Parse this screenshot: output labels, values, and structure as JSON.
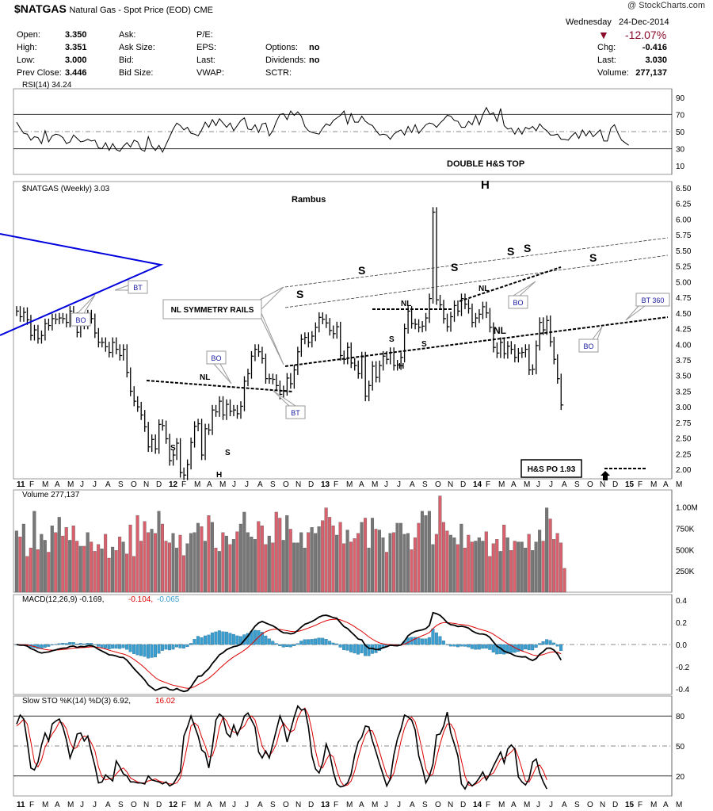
{
  "header": {
    "symbol": "$NATGAS",
    "description": "Natural Gas - Spot Price (EOD)",
    "exchange": "CME",
    "credit": "@ StockCharts.com",
    "day": "Wednesday",
    "date": "24-Dec-2014",
    "pct_change": "-12.07%",
    "quote": [
      {
        "label": "Open:",
        "value": "3.350"
      },
      {
        "label": "High:",
        "value": "3.351"
      },
      {
        "label": "Low:",
        "value": "3.000"
      },
      {
        "label": "Prev Close:",
        "value": "3.446"
      }
    ],
    "col2": [
      "Ask:",
      "Ask Size:",
      "Bid:",
      "Bid Size:"
    ],
    "col3": [
      "P/E:",
      "EPS:",
      "Last:",
      "VWAP:"
    ],
    "col4": [
      {
        "label": "Options:",
        "value": "no"
      },
      {
        "label": "Dividends:",
        "value": "no"
      },
      {
        "label": "SCTR:",
        "value": ""
      }
    ],
    "right": [
      {
        "label": "Chg:",
        "value": "-0.416"
      },
      {
        "label": "Last:",
        "value": "3.030"
      },
      {
        "label": "Volume:",
        "value": "277,137"
      }
    ],
    "down_color": "#8b0a2a"
  },
  "panels": {
    "rsi_label": "RSI(14) 34.24",
    "price_label": "$NATGAS (Weekly) 3.03",
    "volume_label": "Volume 277,137",
    "macd_label": "MACD(12,26,9) -0.169,",
    "macd_sig": "-0.104,",
    "macd_hist": "-0.065",
    "sto_label": "Slow STO %K(14) %D(3) 6.92,",
    "sto_d": "16.02"
  },
  "annotations": {
    "double_top": "DOUBLE H&S TOP",
    "rambus": "Rambus",
    "nl_rails": "NL SYMMETRY RAILS",
    "hs_po": "H&S PO 1.93",
    "bt360": "BT 360",
    "H": "H",
    "S": "S",
    "NL": "NL",
    "BO": "BO",
    "BT": "BT"
  },
  "time_axis": [
    "11",
    "F",
    "M",
    "A",
    "M",
    "J",
    "J",
    "A",
    "S",
    "O",
    "N",
    "D",
    "12",
    "F",
    "M",
    "A",
    "M",
    "J",
    "J",
    "A",
    "S",
    "O",
    "N",
    "D",
    "13",
    "F",
    "M",
    "A",
    "M",
    "J",
    "J",
    "A",
    "S",
    "O",
    "N",
    "D",
    "14",
    "F",
    "M",
    "A",
    "M",
    "J",
    "J",
    "A",
    "S",
    "O",
    "N",
    "D",
    "15",
    "F",
    "M",
    "A",
    "M"
  ],
  "colors": {
    "up": "#777777",
    "down": "#d9606d",
    "macd_hist": "#3a9fd0",
    "signal": "#dd0000",
    "trendline": "#0000dd"
  },
  "chart_data": [
    {
      "type": "line",
      "title": "RSI(14) 34.24",
      "ylim": [
        0,
        100
      ],
      "y_ticks": [
        10,
        30,
        50,
        70,
        90
      ],
      "values": [
        61,
        54,
        48,
        47,
        40,
        44,
        43,
        36,
        51,
        38,
        45,
        47,
        46,
        43,
        36,
        38,
        46,
        42,
        38,
        39,
        41,
        39,
        40,
        31,
        30,
        37,
        28,
        36,
        29,
        27,
        33,
        37,
        32,
        40,
        38,
        29,
        27,
        44,
        33,
        28,
        34,
        26,
        35,
        44,
        53,
        60,
        57,
        52,
        55,
        48,
        47,
        45,
        52,
        61,
        55,
        64,
        57,
        65,
        60,
        55,
        60,
        51,
        57,
        63,
        66,
        53,
        52,
        58,
        49,
        59,
        60,
        45,
        51,
        62,
        70,
        71,
        64,
        74,
        69,
        73,
        68,
        56,
        51,
        49,
        48,
        47,
        54,
        59,
        57,
        63,
        66,
        69,
        74,
        59,
        71,
        61,
        61,
        68,
        62,
        59,
        57,
        51,
        46,
        47,
        46,
        41,
        47,
        50,
        52,
        46,
        56,
        49,
        58,
        48,
        53,
        58,
        60,
        59,
        55,
        60,
        64,
        69,
        68,
        63,
        62,
        55,
        55,
        62,
        58,
        69,
        58,
        70,
        78,
        70,
        72,
        62,
        77,
        57,
        53,
        54,
        47,
        54,
        47,
        55,
        53,
        56,
        51,
        59,
        54,
        51,
        46,
        46,
        47,
        41,
        41,
        40,
        45,
        49,
        42,
        52,
        45,
        51,
        44,
        48,
        52,
        39,
        39,
        54,
        58,
        48,
        40,
        37,
        34
      ]
    },
    {
      "type": "bar",
      "title": "$NATGAS (Weekly) 3.03",
      "y_ticks": [
        2.0,
        2.25,
        2.5,
        2.75,
        3.0,
        3.25,
        3.5,
        3.75,
        4.0,
        4.25,
        4.5,
        4.75,
        5.0,
        5.25,
        5.5,
        5.75,
        6.0,
        6.25,
        6.5
      ],
      "ylim": [
        1.85,
        6.6
      ],
      "values": [
        4.53,
        4.44,
        4.51,
        4.39,
        4.14,
        4.23,
        4.09,
        4.14,
        4.33,
        4.3,
        4.41,
        4.4,
        4.42,
        4.41,
        4.35,
        4.53,
        4.43,
        4.19,
        4.47,
        4.32,
        4.47,
        4.41,
        4.18,
        4.03,
        4.03,
        3.96,
        3.87,
        4.03,
        3.92,
        3.82,
        3.92,
        3.55,
        3.25,
        3.09,
        3.0,
        2.87,
        2.68,
        2.36,
        2.48,
        2.33,
        2.72,
        2.7,
        2.49,
        2.14,
        2.23,
        2.42,
        1.95,
        1.91,
        2.08,
        2.43,
        2.69,
        2.73,
        2.23,
        2.65,
        2.63,
        2.95,
        2.92,
        3.09,
        2.87,
        3.04,
        2.93,
        2.95,
        2.89,
        3.01,
        3.41,
        3.53,
        3.81,
        3.92,
        3.88,
        3.77,
        3.45,
        3.45,
        3.44,
        3.34,
        3.2,
        3.26,
        3.46,
        3.37,
        3.59,
        3.88,
        4.08,
        4.11,
        4.03,
        4.13,
        4.27,
        4.43,
        4.4,
        4.34,
        4.22,
        4.17,
        4.28,
        3.82,
        3.76,
        3.95,
        3.7,
        3.66,
        3.53,
        3.8,
        3.17,
        3.34,
        3.65,
        3.47,
        3.66,
        3.81,
        3.76,
        3.87,
        3.66,
        3.67,
        3.79,
        4.25,
        4.53,
        4.33,
        4.32,
        4.27,
        4.29,
        4.42,
        4.73,
        6.11,
        4.71,
        4.63,
        4.41,
        4.28,
        4.44,
        4.62,
        4.53,
        4.73,
        4.64,
        4.57,
        4.35,
        4.42,
        4.48,
        4.6,
        4.5,
        4.27,
        3.95,
        3.86,
        4.03,
        3.85,
        3.97,
        3.92,
        3.79,
        3.86,
        3.87,
        3.92,
        3.59,
        3.6,
        3.98,
        4.35,
        4.23,
        4.38,
        4.04,
        3.76,
        3.45,
        3.03
      ],
      "annotation_lines": {
        "po_target": 1.93
      }
    },
    {
      "type": "bar",
      "title": "Volume 277,137",
      "y_ticks": [
        "250K",
        "500K",
        "750K",
        "1.00M"
      ],
      "ylim": [
        0,
        1200
      ],
      "values": [
        720,
        650,
        800,
        420,
        520,
        950,
        500,
        680,
        610,
        470,
        780,
        700,
        880,
        660,
        760,
        610,
        780,
        600,
        540,
        540,
        700,
        590,
        480,
        560,
        510,
        680,
        400,
        530,
        490,
        650,
        590,
        450,
        790,
        420,
        900,
        600,
        830,
        700,
        740,
        690,
        950,
        800,
        600,
        580,
        690,
        520,
        670,
        430,
        570,
        690,
        700,
        810,
        770,
        600,
        900,
        820,
        520,
        480,
        700,
        660,
        560,
        620,
        710,
        800,
        940,
        700,
        650,
        620,
        830,
        780,
        560,
        660,
        580,
        940,
        870,
        610,
        900,
        740,
        580,
        580,
        700,
        520,
        700,
        760,
        690,
        770,
        840,
        990,
        880,
        780,
        670,
        820,
        570,
        730,
        590,
        630,
        690,
        820,
        870,
        520,
        870,
        740,
        730,
        640,
        470,
        690,
        700,
        810,
        810,
        680,
        690,
        500,
        640,
        810,
        950,
        900,
        950,
        560,
        680,
        1130,
        820,
        720,
        670,
        640,
        560,
        800,
        520,
        670,
        590,
        600,
        640,
        600,
        710,
        420,
        570,
        620,
        480,
        790,
        640,
        490,
        600,
        590,
        590,
        520,
        680,
        490,
        590,
        730,
        600,
        990,
        860,
        620,
        690,
        580,
        280
      ]
    },
    {
      "type": "line",
      "title": "MACD(12,26,9) -0.169, -0.104, -0.065",
      "ylim": [
        -0.45,
        0.45
      ],
      "y_ticks": [
        -0.4,
        -0.2,
        0.0,
        0.2,
        0.4
      ]
    },
    {
      "type": "line",
      "title": "Slow STO %K(14) %D(3) 6.92, 16.02",
      "ylim": [
        0,
        100
      ],
      "y_ticks": [
        20,
        50,
        80
      ],
      "series": [
        {
          "name": "%K",
          "values": [
            72,
            81,
            77,
            54,
            28,
            26,
            34,
            51,
            63,
            55,
            72,
            75,
            77,
            69,
            56,
            38,
            48,
            62,
            63,
            55,
            60,
            44,
            30,
            13,
            14,
            21,
            18,
            15,
            35,
            29,
            22,
            20,
            14,
            14,
            13,
            13,
            12,
            20,
            16,
            15,
            14,
            12,
            14,
            10,
            12,
            18,
            24,
            60,
            69,
            80,
            70,
            60,
            46,
            43,
            28,
            49,
            76,
            82,
            79,
            63,
            59,
            71,
            61,
            69,
            80,
            83,
            76,
            69,
            44,
            38,
            45,
            38,
            52,
            66,
            80,
            71,
            54,
            66,
            79,
            90,
            86,
            87,
            69,
            40,
            27,
            23,
            33,
            52,
            42,
            24,
            12,
            9,
            10,
            13,
            22,
            41,
            54,
            59,
            70,
            69,
            55,
            44,
            32,
            21,
            10,
            17,
            41,
            57,
            67,
            81,
            79,
            76,
            66,
            40,
            28,
            13,
            20,
            32,
            61,
            62,
            70,
            84,
            63,
            52,
            40,
            12,
            7,
            14,
            10,
            13,
            18,
            24,
            16,
            22,
            30,
            37,
            44,
            33,
            47,
            51,
            47,
            19,
            14,
            11,
            17,
            34,
            37,
            23,
            14,
            7
          ]
        },
        {
          "name": "%D",
          "values": [
            70,
            73,
            77,
            72,
            54,
            34,
            29,
            36,
            49,
            56,
            62,
            67,
            74,
            73,
            67,
            54,
            47,
            49,
            57,
            60,
            59,
            53,
            45,
            29,
            19,
            16,
            17,
            18,
            22,
            26,
            28,
            24,
            18,
            16,
            14,
            13,
            13,
            15,
            16,
            17,
            15,
            14,
            13,
            12,
            12,
            13,
            18,
            34,
            51,
            70,
            73,
            70,
            59,
            50,
            39,
            40,
            51,
            69,
            79,
            75,
            67,
            64,
            63,
            67,
            70,
            77,
            80,
            76,
            63,
            50,
            43,
            40,
            45,
            52,
            66,
            73,
            68,
            64,
            66,
            78,
            85,
            88,
            81,
            65,
            45,
            30,
            28,
            36,
            42,
            39,
            26,
            15,
            10,
            11,
            15,
            25,
            39,
            51,
            61,
            66,
            65,
            56,
            44,
            32,
            21,
            16,
            23,
            38,
            55,
            68,
            76,
            79,
            74,
            61,
            45,
            27,
            20,
            22,
            38,
            52,
            64,
            72,
            72,
            66,
            52,
            35,
            20,
            11,
            10,
            12,
            14,
            18,
            19,
            21,
            23,
            30,
            37,
            38,
            41,
            44,
            48,
            39,
            27,
            15,
            14,
            21,
            29,
            31,
            25,
            16
          ]
        }
      ]
    }
  ]
}
